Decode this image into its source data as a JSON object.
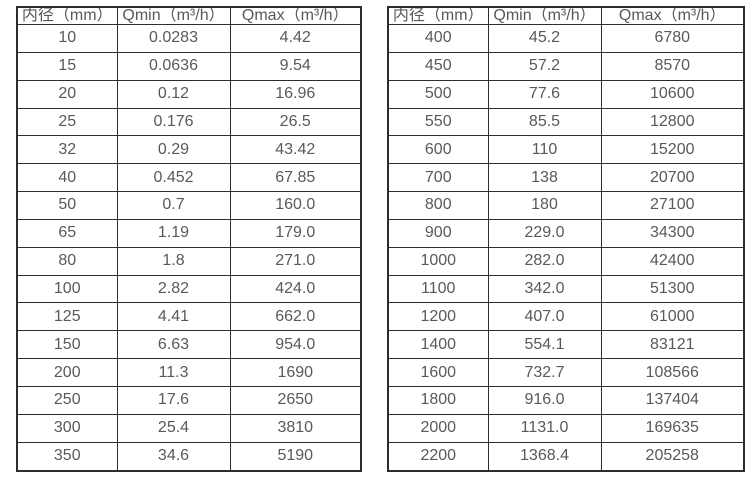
{
  "colors": {
    "background": "#ffffff",
    "border": "#2d2d2d",
    "text": "#595959"
  },
  "chart_data": [
    {
      "type": "table",
      "name": "flow-rate-table-small-diameters",
      "columns": [
        "内径（mm）",
        "Qmin（m³/h）",
        "Qmax（m³/h）"
      ],
      "rows": [
        [
          "10",
          "0.0283",
          "4.42"
        ],
        [
          "15",
          "0.0636",
          "9.54"
        ],
        [
          "20",
          "0.12",
          "16.96"
        ],
        [
          "25",
          "0.176",
          "26.5"
        ],
        [
          "32",
          "0.29",
          "43.42"
        ],
        [
          "40",
          "0.452",
          "67.85"
        ],
        [
          "50",
          "0.7",
          "160.0"
        ],
        [
          "65",
          "1.19",
          "179.0"
        ],
        [
          "80",
          "1.8",
          "271.0"
        ],
        [
          "100",
          "2.82",
          "424.0"
        ],
        [
          "125",
          "4.41",
          "662.0"
        ],
        [
          "150",
          "6.63",
          "954.0"
        ],
        [
          "200",
          "11.3",
          "1690"
        ],
        [
          "250",
          "17.6",
          "2650"
        ],
        [
          "300",
          "25.4",
          "3810"
        ],
        [
          "350",
          "34.6",
          "5190"
        ]
      ]
    },
    {
      "type": "table",
      "name": "flow-rate-table-large-diameters",
      "columns": [
        "内径（mm）",
        "Qmin（m³/h）",
        "Qmax（m³/h）"
      ],
      "rows": [
        [
          "400",
          "45.2",
          "6780"
        ],
        [
          "450",
          "57.2",
          "8570"
        ],
        [
          "500",
          "77.6",
          "10600"
        ],
        [
          "550",
          "85.5",
          "12800"
        ],
        [
          "600",
          "110",
          "15200"
        ],
        [
          "700",
          "138",
          "20700"
        ],
        [
          "800",
          "180",
          "27100"
        ],
        [
          "900",
          "229.0",
          "34300"
        ],
        [
          "1000",
          "282.0",
          "42400"
        ],
        [
          "1100",
          "342.0",
          "51300"
        ],
        [
          "1200",
          "407.0",
          "61000"
        ],
        [
          "1400",
          "554.1",
          "83121"
        ],
        [
          "1600",
          "732.7",
          "108566"
        ],
        [
          "1800",
          "916.0",
          "137404"
        ],
        [
          "2000",
          "1131.0",
          "169635"
        ],
        [
          "2200",
          "1368.4",
          "205258"
        ]
      ]
    }
  ]
}
